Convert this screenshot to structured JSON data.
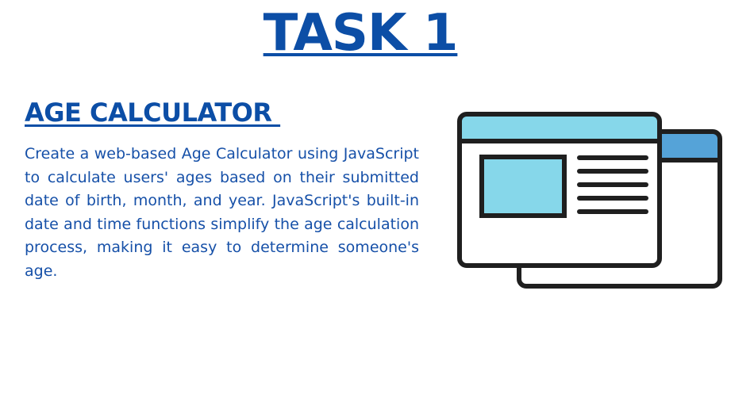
{
  "title": "TASK 1",
  "section": {
    "heading": "AGE CALCULATOR ",
    "description": "Create a web-based Age Calculator using JavaScript to calculate users' ages based on their submitted date of birth, month, and year. JavaScript's built-in date and time functions simplify the age calculation process, making it easy to determine someone's age."
  },
  "illustration": {
    "icon": "browser-windows-icon",
    "colors": {
      "outline": "#1f1f1f",
      "title_bar_front": "#86d7ea",
      "title_bar_back": "#55a3d8",
      "image_block": "#86d7ea",
      "window_fill": "#ffffff"
    }
  },
  "colors": {
    "heading_text": "#0c4ea6",
    "body_text": "#1650a8",
    "background": "#ffffff"
  }
}
